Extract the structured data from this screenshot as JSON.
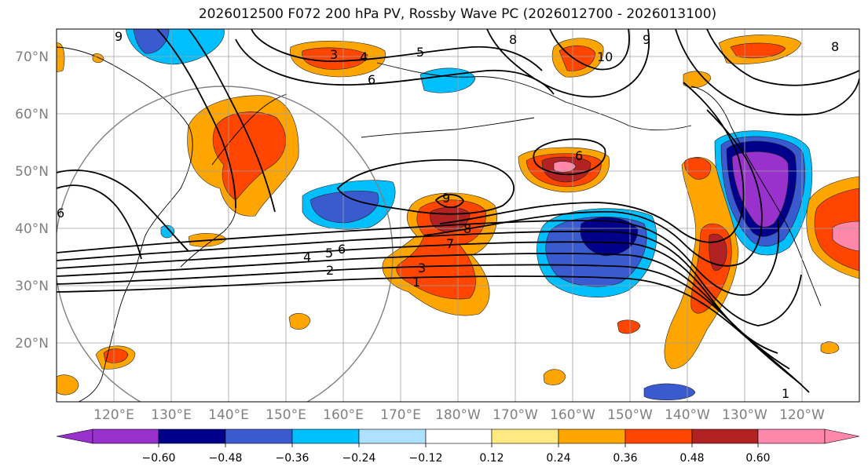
{
  "title": "2026012500 F072 200 hPa PV, Rossby Wave PC (2026012700 - 2026013100)",
  "lat_labels": [
    "70°N",
    "60°N",
    "50°N",
    "40°N",
    "30°N",
    "20°N"
  ],
  "lon_labels": [
    "120°E",
    "130°E",
    "140°E",
    "150°E",
    "160°E",
    "170°E",
    "180°W",
    "170°W",
    "160°W",
    "150°W",
    "140°W",
    "130°W",
    "120°W"
  ],
  "colorbar": {
    "ticks": [
      "−0.60",
      "−0.48",
      "−0.36",
      "−0.24",
      "−0.12",
      "0.12",
      "0.24",
      "0.36",
      "0.48",
      "0.60"
    ],
    "colors": [
      "#9932cc",
      "#00008b",
      "#3a5bd0",
      "#00bfff",
      "#b0e0ff",
      "#ffffff",
      "#ffe980",
      "#ffa500",
      "#ff4500",
      "#b22222",
      "#ff88aa"
    ]
  },
  "contour_labels": [
    "9",
    "3",
    "4",
    "5",
    "6",
    "8",
    "10",
    "9",
    "8",
    "6",
    "9",
    "8",
    "7",
    "6",
    "5",
    "4",
    "3",
    "2",
    "1",
    "6",
    "1"
  ],
  "colors": {
    "land_outline": "#000000",
    "grid": "#a0a0a0",
    "contour": "#000000",
    "circle": "#808080"
  }
}
